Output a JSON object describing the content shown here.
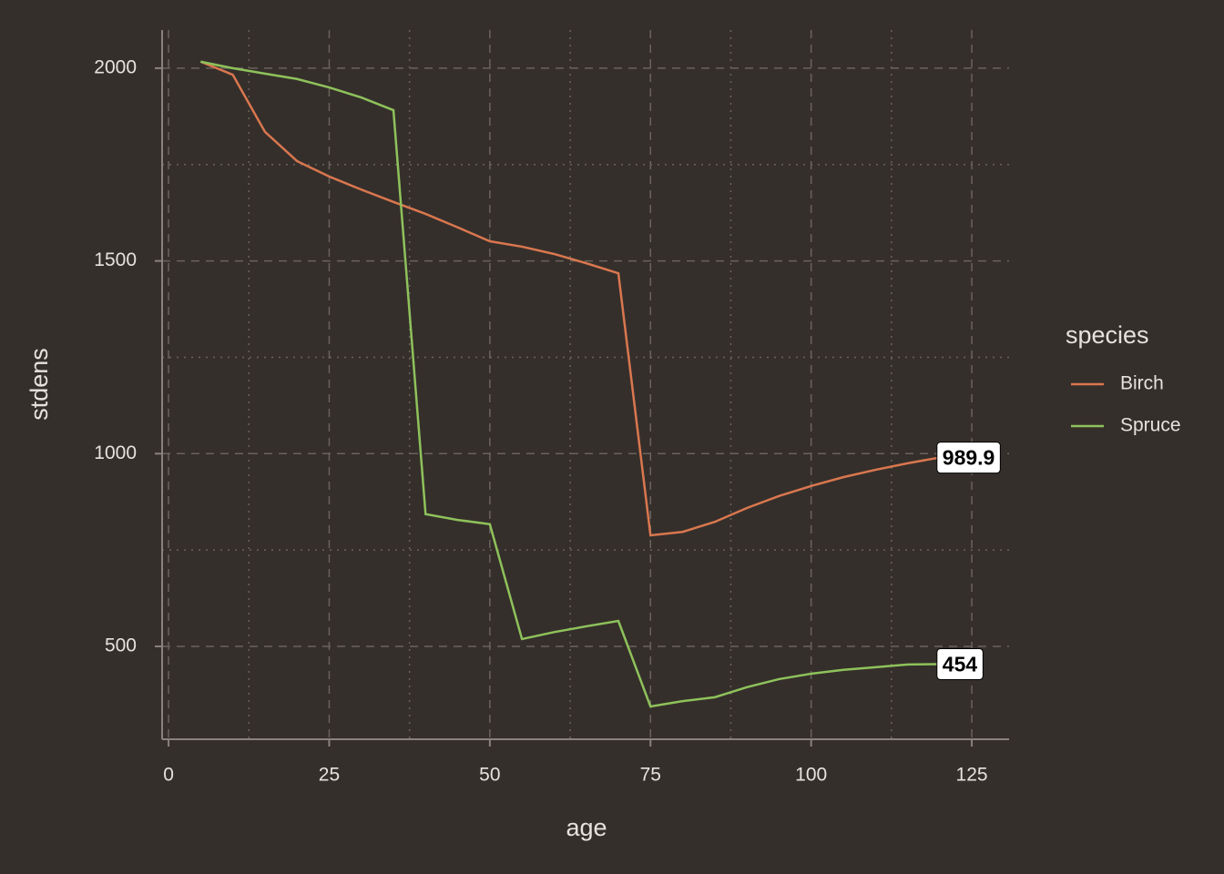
{
  "chart_data": {
    "type": "line",
    "x_label": "age",
    "y_label": "stdens",
    "x": [
      5,
      10,
      15,
      20,
      25,
      30,
      35,
      40,
      45,
      50,
      55,
      60,
      65,
      70,
      75,
      80,
      85,
      90,
      95,
      100,
      105,
      110,
      115,
      120
    ],
    "series": [
      {
        "name": "Birch",
        "color": "#d9774f",
        "values": [
          2017,
          1983,
          1835,
          1759,
          1719,
          1685,
          1653,
          1622,
          1587,
          1551,
          1537,
          1518,
          1494,
          1468,
          788,
          797,
          823,
          859,
          890,
          916,
          939,
          958,
          975,
          989.9
        ]
      },
      {
        "name": "Spruce",
        "color": "#8ec25b",
        "values": [
          2017,
          2000,
          1986,
          1972,
          1950,
          1924,
          1891,
          843,
          828,
          817,
          519,
          537,
          552,
          566,
          344,
          358,
          368,
          394,
          415,
          429,
          439,
          446,
          453,
          454
        ]
      }
    ],
    "xlim": [
      -1,
      130.8
    ],
    "xticks": [
      0,
      25,
      50,
      75,
      100,
      125
    ],
    "ylim": [
      259,
      2099
    ],
    "yticks": [
      500,
      1000,
      1500,
      2000
    ],
    "grid": true,
    "minor_grid": true,
    "legend_title": "species",
    "legend_position": "right",
    "end_labels": true
  }
}
